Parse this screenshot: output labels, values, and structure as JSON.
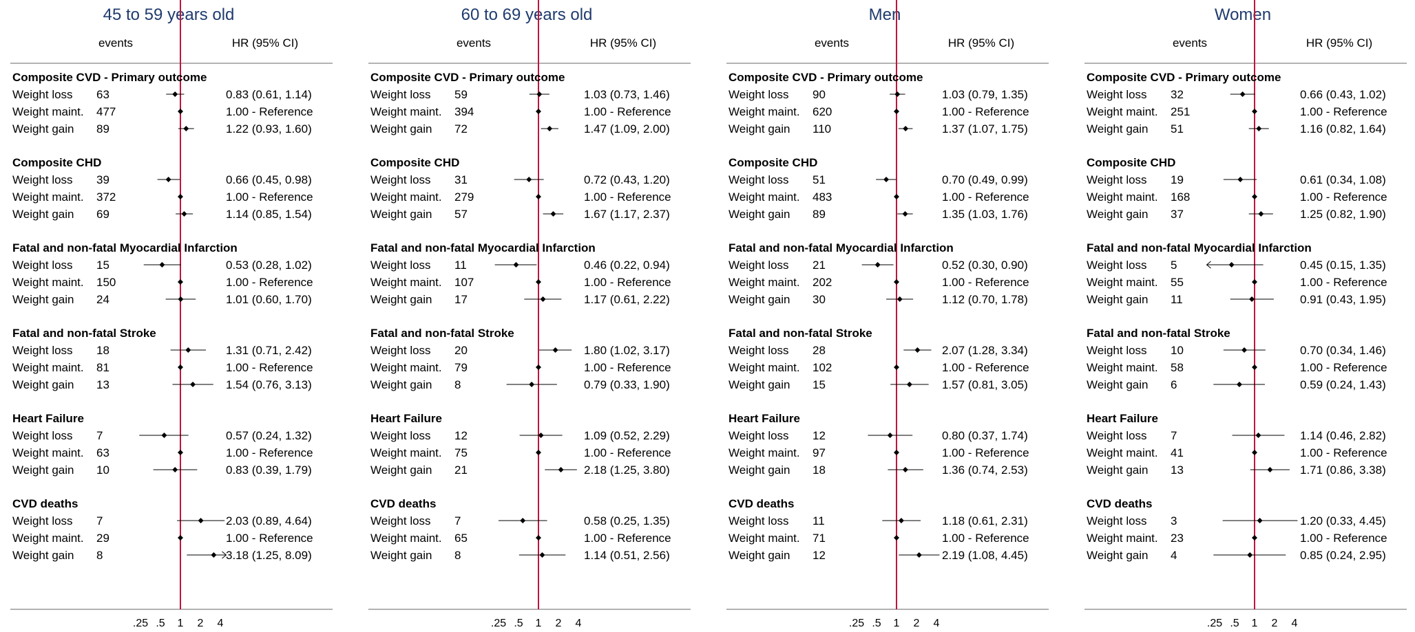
{
  "colors": {
    "title": "#1f3b6e",
    "reference_line": "#c0143c",
    "markers": "#000000",
    "axis": "#666666"
  },
  "chart_data": {
    "type": "forest",
    "x_scale": "log",
    "x_ticks": [
      0.25,
      0.5,
      1,
      2,
      4
    ],
    "x_tick_labels": [
      ".25",
      ".5",
      "1",
      "2",
      "4"
    ],
    "reference_value": 1,
    "column_headers": {
      "events": "events",
      "hr": "HR (95% CI)"
    },
    "panels": [
      {
        "title": "45 to 59 years old",
        "groups": [
          {
            "title": "Composite CVD - Primary outcome",
            "rows": [
              {
                "label": "Weight loss",
                "events": "63",
                "hr": 0.83,
                "lo": 0.61,
                "hi": 1.14,
                "text": "0.83 (0.61, 1.14)"
              },
              {
                "label": "Weight maint.",
                "events": "477",
                "hr": 1,
                "text": "1.00 - Reference"
              },
              {
                "label": "Weight gain",
                "events": "89",
                "hr": 1.22,
                "lo": 0.93,
                "hi": 1.6,
                "text": "1.22 (0.93, 1.60)"
              }
            ]
          },
          {
            "title": "Composite CHD",
            "rows": [
              {
                "label": "Weight loss",
                "events": "39",
                "hr": 0.66,
                "lo": 0.45,
                "hi": 0.98,
                "text": "0.66 (0.45, 0.98)"
              },
              {
                "label": "Weight maint.",
                "events": "372",
                "hr": 1,
                "text": "1.00 - Reference"
              },
              {
                "label": "Weight gain",
                "events": "69",
                "hr": 1.14,
                "lo": 0.85,
                "hi": 1.54,
                "text": "1.14 (0.85, 1.54)"
              }
            ]
          },
          {
            "title": "Fatal and non-fatal Myocardial Infarction",
            "rows": [
              {
                "label": "Weight loss",
                "events": "15",
                "hr": 0.53,
                "lo": 0.28,
                "hi": 1.02,
                "text": "0.53 (0.28, 1.02)"
              },
              {
                "label": "Weight maint.",
                "events": "150",
                "hr": 1,
                "text": "1.00 - Reference"
              },
              {
                "label": "Weight gain",
                "events": "24",
                "hr": 1.01,
                "lo": 0.6,
                "hi": 1.7,
                "text": "1.01 (0.60, 1.70)"
              }
            ]
          },
          {
            "title": "Fatal and non-fatal Stroke",
            "rows": [
              {
                "label": "Weight loss",
                "events": "18",
                "hr": 1.31,
                "lo": 0.71,
                "hi": 2.42,
                "text": "1.31 (0.71, 2.42)"
              },
              {
                "label": "Weight maint.",
                "events": "81",
                "hr": 1,
                "text": "1.00 - Reference"
              },
              {
                "label": "Weight gain",
                "events": "13",
                "hr": 1.54,
                "lo": 0.76,
                "hi": 3.13,
                "text": "1.54 (0.76, 3.13)"
              }
            ]
          },
          {
            "title": "Heart Failure",
            "rows": [
              {
                "label": "Weight loss",
                "events": "7",
                "hr": 0.57,
                "lo": 0.24,
                "hi": 1.32,
                "text": "0.57 (0.24, 1.32)"
              },
              {
                "label": "Weight maint.",
                "events": "63",
                "hr": 1,
                "text": "1.00 - Reference"
              },
              {
                "label": "Weight gain",
                "events": "10",
                "hr": 0.83,
                "lo": 0.39,
                "hi": 1.79,
                "text": "0.83 (0.39, 1.79)"
              }
            ]
          },
          {
            "title": "CVD deaths",
            "rows": [
              {
                "label": "Weight loss",
                "events": "7",
                "hr": 2.03,
                "lo": 0.89,
                "hi": 4.64,
                "text": "2.03 (0.89, 4.64)"
              },
              {
                "label": "Weight maint.",
                "events": "29",
                "hr": 1,
                "text": "1.00 - Reference"
              },
              {
                "label": "Weight gain",
                "events": "8",
                "hr": 3.18,
                "lo": 1.25,
                "hi": 8.09,
                "text": "3.18 (1.25, 8.09)"
              }
            ]
          }
        ]
      },
      {
        "title": "60 to 69 years old",
        "groups": [
          {
            "title": "Composite CVD - Primary outcome",
            "rows": [
              {
                "label": "Weight loss",
                "events": "59",
                "hr": 1.03,
                "lo": 0.73,
                "hi": 1.46,
                "text": "1.03 (0.73, 1.46)"
              },
              {
                "label": "Weight maint.",
                "events": "394",
                "hr": 1,
                "text": "1.00 - Reference"
              },
              {
                "label": "Weight gain",
                "events": "72",
                "hr": 1.47,
                "lo": 1.09,
                "hi": 2.0,
                "text": "1.47 (1.09, 2.00)"
              }
            ]
          },
          {
            "title": "Composite CHD",
            "rows": [
              {
                "label": "Weight loss",
                "events": "31",
                "hr": 0.72,
                "lo": 0.43,
                "hi": 1.2,
                "text": "0.72 (0.43, 1.20)"
              },
              {
                "label": "Weight maint.",
                "events": "279",
                "hr": 1,
                "text": "1.00 - Reference"
              },
              {
                "label": "Weight gain",
                "events": "57",
                "hr": 1.67,
                "lo": 1.17,
                "hi": 2.37,
                "text": "1.67 (1.17, 2.37)"
              }
            ]
          },
          {
            "title": "Fatal and non-fatal Myocardial Infarction",
            "rows": [
              {
                "label": "Weight loss",
                "events": "11",
                "hr": 0.46,
                "lo": 0.22,
                "hi": 0.94,
                "text": "0.46 (0.22, 0.94)"
              },
              {
                "label": "Weight maint.",
                "events": "107",
                "hr": 1,
                "text": "1.00 - Reference"
              },
              {
                "label": "Weight gain",
                "events": "17",
                "hr": 1.17,
                "lo": 0.61,
                "hi": 2.22,
                "text": "1.17 (0.61, 2.22)"
              }
            ]
          },
          {
            "title": "Fatal and non-fatal Stroke",
            "rows": [
              {
                "label": "Weight loss",
                "events": "20",
                "hr": 1.8,
                "lo": 1.02,
                "hi": 3.17,
                "text": "1.80 (1.02, 3.17)"
              },
              {
                "label": "Weight maint.",
                "events": "79",
                "hr": 1,
                "text": "1.00 - Reference"
              },
              {
                "label": "Weight gain",
                "events": "8",
                "hr": 0.79,
                "lo": 0.33,
                "hi": 1.9,
                "text": "0.79 (0.33, 1.90)"
              }
            ]
          },
          {
            "title": "Heart Failure",
            "rows": [
              {
                "label": "Weight loss",
                "events": "12",
                "hr": 1.09,
                "lo": 0.52,
                "hi": 2.29,
                "text": "1.09 (0.52, 2.29)"
              },
              {
                "label": "Weight maint.",
                "events": "75",
                "hr": 1,
                "text": "1.00 - Reference"
              },
              {
                "label": "Weight gain",
                "events": "21",
                "hr": 2.18,
                "lo": 1.25,
                "hi": 3.8,
                "text": "2.18 (1.25, 3.80)"
              }
            ]
          },
          {
            "title": "CVD deaths",
            "rows": [
              {
                "label": "Weight loss",
                "events": "7",
                "hr": 0.58,
                "lo": 0.25,
                "hi": 1.35,
                "text": "0.58 (0.25, 1.35)"
              },
              {
                "label": "Weight maint.",
                "events": "65",
                "hr": 1,
                "text": "1.00 - Reference"
              },
              {
                "label": "Weight gain",
                "events": "8",
                "hr": 1.14,
                "lo": 0.51,
                "hi": 2.56,
                "text": "1.14 (0.51, 2.56)"
              }
            ]
          }
        ]
      },
      {
        "title": "Men",
        "groups": [
          {
            "title": "Composite CVD - Primary outcome",
            "rows": [
              {
                "label": "Weight loss",
                "events": "90",
                "hr": 1.03,
                "lo": 0.79,
                "hi": 1.35,
                "text": "1.03 (0.79, 1.35)"
              },
              {
                "label": "Weight maint.",
                "events": "620",
                "hr": 1,
                "text": "1.00 - Reference"
              },
              {
                "label": "Weight gain",
                "events": "110",
                "hr": 1.37,
                "lo": 1.07,
                "hi": 1.75,
                "text": "1.37 (1.07, 1.75)"
              }
            ]
          },
          {
            "title": "Composite CHD",
            "rows": [
              {
                "label": "Weight loss",
                "events": "51",
                "hr": 0.7,
                "lo": 0.49,
                "hi": 0.99,
                "text": "0.70 (0.49, 0.99)"
              },
              {
                "label": "Weight maint.",
                "events": "483",
                "hr": 1,
                "text": "1.00 - Reference"
              },
              {
                "label": "Weight gain",
                "events": "89",
                "hr": 1.35,
                "lo": 1.03,
                "hi": 1.76,
                "text": "1.35 (1.03, 1.76)"
              }
            ]
          },
          {
            "title": "Fatal and non-fatal Myocardial Infarction",
            "rows": [
              {
                "label": "Weight loss",
                "events": "21",
                "hr": 0.52,
                "lo": 0.3,
                "hi": 0.9,
                "text": "0.52 (0.30, 0.90)"
              },
              {
                "label": "Weight maint.",
                "events": "202",
                "hr": 1,
                "text": "1.00 - Reference"
              },
              {
                "label": "Weight gain",
                "events": "30",
                "hr": 1.12,
                "lo": 0.7,
                "hi": 1.78,
                "text": "1.12 (0.70, 1.78)"
              }
            ]
          },
          {
            "title": "Fatal and non-fatal Stroke",
            "rows": [
              {
                "label": "Weight loss",
                "events": "28",
                "hr": 2.07,
                "lo": 1.28,
                "hi": 3.34,
                "text": "2.07 (1.28, 3.34)"
              },
              {
                "label": "Weight maint.",
                "events": "102",
                "hr": 1,
                "text": "1.00 - Reference"
              },
              {
                "label": "Weight gain",
                "events": "15",
                "hr": 1.57,
                "lo": 0.81,
                "hi": 3.05,
                "text": "1.57 (0.81, 3.05)"
              }
            ]
          },
          {
            "title": "Heart Failure",
            "rows": [
              {
                "label": "Weight loss",
                "events": "12",
                "hr": 0.8,
                "lo": 0.37,
                "hi": 1.74,
                "text": "0.80 (0.37, 1.74)"
              },
              {
                "label": "Weight maint.",
                "events": "97",
                "hr": 1,
                "text": "1.00 - Reference"
              },
              {
                "label": "Weight gain",
                "events": "18",
                "hr": 1.36,
                "lo": 0.74,
                "hi": 2.53,
                "text": "1.36 (0.74, 2.53)"
              }
            ]
          },
          {
            "title": "CVD deaths",
            "rows": [
              {
                "label": "Weight loss",
                "events": "11",
                "hr": 1.18,
                "lo": 0.61,
                "hi": 2.31,
                "text": "1.18 (0.61, 2.31)"
              },
              {
                "label": "Weight maint.",
                "events": "71",
                "hr": 1,
                "text": "1.00 - Reference"
              },
              {
                "label": "Weight gain",
                "events": "12",
                "hr": 2.19,
                "lo": 1.08,
                "hi": 4.45,
                "text": "2.19 (1.08, 4.45)"
              }
            ]
          }
        ]
      },
      {
        "title": "Women",
        "groups": [
          {
            "title": "Composite CVD - Primary outcome",
            "rows": [
              {
                "label": "Weight loss",
                "events": "32",
                "hr": 0.66,
                "lo": 0.43,
                "hi": 1.02,
                "text": "0.66 (0.43, 1.02)"
              },
              {
                "label": "Weight maint.",
                "events": "251",
                "hr": 1,
                "text": "1.00 - Reference"
              },
              {
                "label": "Weight gain",
                "events": "51",
                "hr": 1.16,
                "lo": 0.82,
                "hi": 1.64,
                "text": "1.16 (0.82, 1.64)"
              }
            ]
          },
          {
            "title": "Composite CHD",
            "rows": [
              {
                "label": "Weight loss",
                "events": "19",
                "hr": 0.61,
                "lo": 0.34,
                "hi": 1.08,
                "text": "0.61 (0.34, 1.08)"
              },
              {
                "label": "Weight maint.",
                "events": "168",
                "hr": 1,
                "text": "1.00 - Reference"
              },
              {
                "label": "Weight gain",
                "events": "37",
                "hr": 1.25,
                "lo": 0.82,
                "hi": 1.9,
                "text": "1.25 (0.82, 1.90)"
              }
            ]
          },
          {
            "title": "Fatal and non-fatal Myocardial Infarction",
            "rows": [
              {
                "label": "Weight loss",
                "events": "5",
                "hr": 0.45,
                "lo": 0.15,
                "hi": 1.35,
                "text": "0.45 (0.15, 1.35)"
              },
              {
                "label": "Weight maint.",
                "events": "55",
                "hr": 1,
                "text": "1.00 - Reference"
              },
              {
                "label": "Weight gain",
                "events": "11",
                "hr": 0.91,
                "lo": 0.43,
                "hi": 1.95,
                "text": "0.91 (0.43, 1.95)"
              }
            ]
          },
          {
            "title": "Fatal and non-fatal Stroke",
            "rows": [
              {
                "label": "Weight loss",
                "events": "10",
                "hr": 0.7,
                "lo": 0.34,
                "hi": 1.46,
                "text": "0.70 (0.34, 1.46)"
              },
              {
                "label": "Weight maint.",
                "events": "58",
                "hr": 1,
                "text": "1.00 - Reference"
              },
              {
                "label": "Weight gain",
                "events": "6",
                "hr": 0.59,
                "lo": 0.24,
                "hi": 1.43,
                "text": "0.59 (0.24, 1.43)"
              }
            ]
          },
          {
            "title": "Heart Failure",
            "rows": [
              {
                "label": "Weight loss",
                "events": "7",
                "hr": 1.14,
                "lo": 0.46,
                "hi": 2.82,
                "text": "1.14 (0.46, 2.82)"
              },
              {
                "label": "Weight maint.",
                "events": "41",
                "hr": 1,
                "text": "1.00 - Reference"
              },
              {
                "label": "Weight gain",
                "events": "13",
                "hr": 1.71,
                "lo": 0.86,
                "hi": 3.38,
                "text": "1.71 (0.86, 3.38)"
              }
            ]
          },
          {
            "title": "CVD deaths",
            "rows": [
              {
                "label": "Weight loss",
                "events": "3",
                "hr": 1.2,
                "lo": 0.33,
                "hi": 4.45,
                "text": "1.20 (0.33, 4.45)"
              },
              {
                "label": "Weight maint.",
                "events": "23",
                "hr": 1,
                "text": "1.00 - Reference"
              },
              {
                "label": "Weight gain",
                "events": "4",
                "hr": 0.85,
                "lo": 0.24,
                "hi": 2.95,
                "text": "0.85 (0.24, 2.95)"
              }
            ]
          }
        ]
      }
    ]
  }
}
